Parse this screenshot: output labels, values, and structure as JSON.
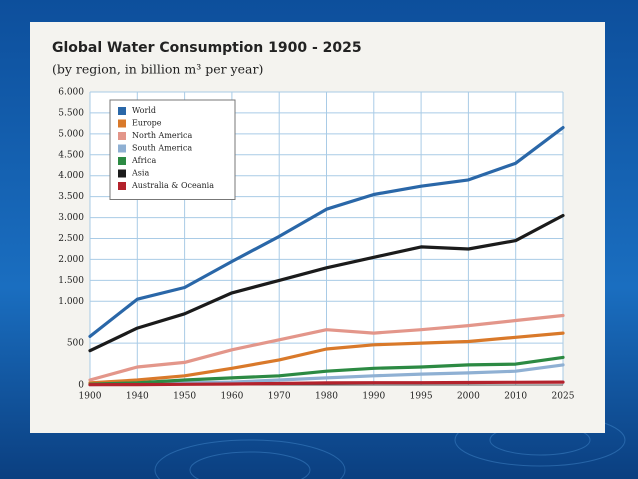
{
  "chart_data": {
    "type": "line",
    "title": "Global Water Consumption 1900 - 2025",
    "subtitle": "(by region, in billion m³ per year)",
    "categories": [
      "1900",
      "1940",
      "1950",
      "1960",
      "1970",
      "1980",
      "1990",
      "1995",
      "2000",
      "2010",
      "2025"
    ],
    "series": [
      {
        "name": "World",
        "color": "#2a67a8",
        "values": [
          580,
          1050,
          1330,
          1950,
          2550,
          3200,
          3550,
          3750,
          3900,
          4300,
          5150
        ]
      },
      {
        "name": "Europe",
        "color": "#d9792a",
        "values": [
          25,
          60,
          110,
          200,
          300,
          430,
          480,
          500,
          520,
          570,
          620
        ]
      },
      {
        "name": "North America",
        "color": "#e3968a",
        "values": [
          60,
          215,
          270,
          420,
          540,
          660,
          620,
          660,
          710,
          770,
          830
        ]
      },
      {
        "name": "South America",
        "color": "#8fb0d3",
        "values": [
          5,
          15,
          25,
          35,
          60,
          85,
          110,
          130,
          145,
          165,
          240
        ]
      },
      {
        "name": "Africa",
        "color": "#2c8a43",
        "values": [
          10,
          25,
          60,
          85,
          110,
          165,
          200,
          215,
          240,
          250,
          330
        ]
      },
      {
        "name": "Asia",
        "color": "#1b1b1b",
        "values": [
          410,
          680,
          850,
          1200,
          1500,
          1800,
          2050,
          2300,
          2250,
          2450,
          3050
        ]
      },
      {
        "name": "Australia & Oceania",
        "color": "#b3222c",
        "values": [
          3,
          5,
          8,
          12,
          18,
          25,
          28,
          28,
          30,
          32,
          35
        ]
      }
    ],
    "ylim": [
      0,
      6000
    ],
    "y_break": {
      "value": 1000,
      "stretch": 2
    },
    "yticks": [
      {
        "value": 6000,
        "label": "6.000"
      },
      {
        "value": 5500,
        "label": "5.500"
      },
      {
        "value": 5000,
        "label": "5.000"
      },
      {
        "value": 4500,
        "label": "4.500"
      },
      {
        "value": 4000,
        "label": "4.000"
      },
      {
        "value": 3500,
        "label": "3.500"
      },
      {
        "value": 3000,
        "label": "3.000"
      },
      {
        "value": 2500,
        "label": "2.500"
      },
      {
        "value": 2000,
        "label": "2.000"
      },
      {
        "value": 1500,
        "label": "1.500"
      },
      {
        "value": 1000,
        "label": "1.000"
      },
      500,
      0
    ],
    "grid": true,
    "legend": "upper left"
  }
}
